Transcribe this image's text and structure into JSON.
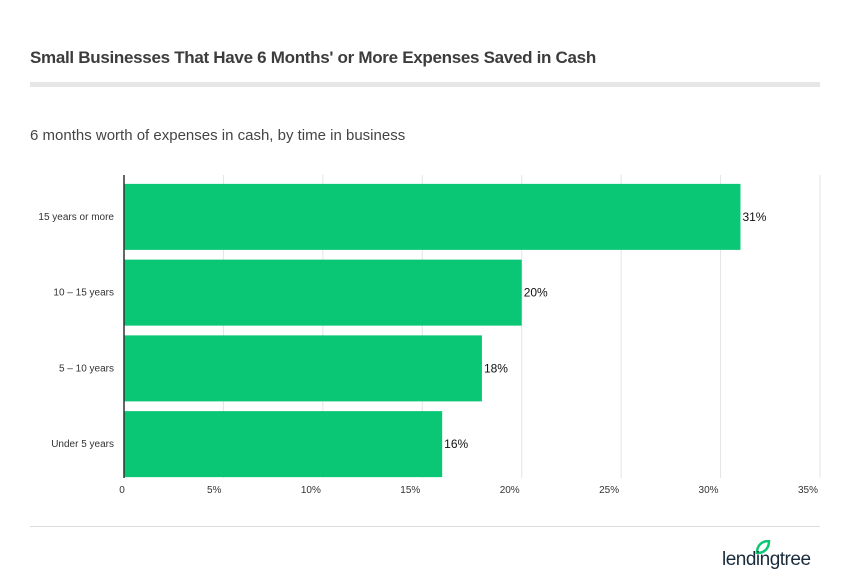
{
  "header": {
    "title": "Small Businesses That Have 6 Months' or More Expenses Saved in Cash",
    "subtitle": "6 months worth of expenses in cash, by time in business"
  },
  "brand": {
    "logo_text": "lendingtree",
    "color": "#0ac775"
  },
  "chart_data": {
    "type": "bar",
    "orientation": "horizontal",
    "title": "Small Businesses That Have 6 Months' or More Expenses Saved in Cash",
    "subtitle": "6 months worth of expenses in cash, by time in business",
    "categories": [
      "15 years or more",
      "10 – 15 years",
      "5 – 10 years",
      "Under 5 years"
    ],
    "values": [
      31,
      20,
      18,
      16
    ],
    "data_labels": [
      "31%",
      "20%",
      "18%",
      "16%"
    ],
    "xlim": [
      0,
      35
    ],
    "xticks": [
      0,
      5,
      10,
      15,
      20,
      25,
      30,
      35
    ],
    "xtick_labels": [
      "0",
      "5%",
      "10%",
      "15%",
      "20%",
      "25%",
      "30%",
      "35%"
    ],
    "grid": true,
    "bar_color": "#0ac775"
  }
}
